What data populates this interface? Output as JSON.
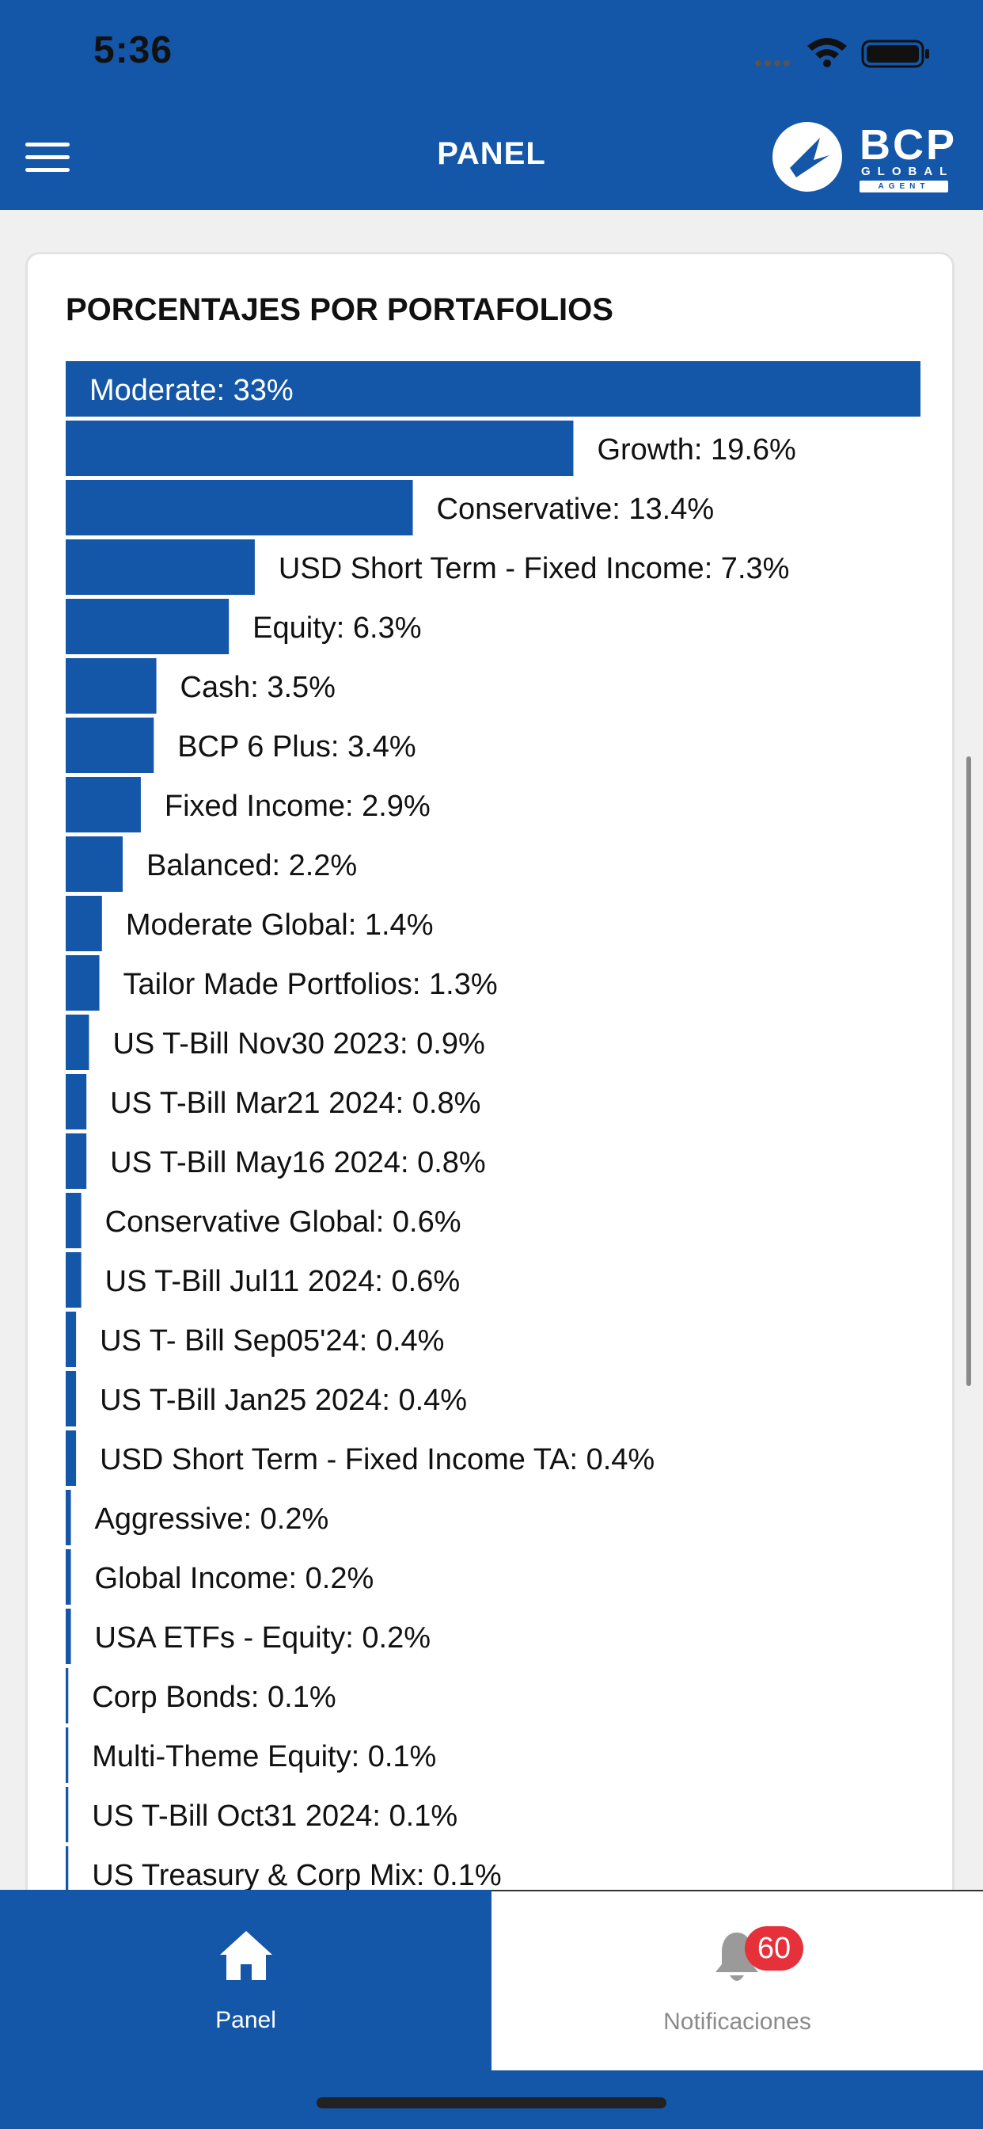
{
  "status_bar": {
    "time": "5:36"
  },
  "header": {
    "title": "PANEL",
    "logo_text": "BCP",
    "logo_sub": "GLOBAL",
    "logo_tag": "AGENT"
  },
  "card": {
    "title": "PORCENTAJES POR PORTAFOLIOS"
  },
  "colors": {
    "primary": "#1456a8",
    "badge": "#e6303a"
  },
  "chart_data": {
    "type": "bar",
    "orientation": "horizontal",
    "title": "PORCENTAJES POR PORTAFOLIOS",
    "unit": "%",
    "xlim": [
      0,
      33
    ],
    "categories": [
      "Moderate",
      "Growth",
      "Conservative",
      "USD Short Term - Fixed Income",
      "Equity",
      "Cash",
      "BCP 6 Plus",
      "Fixed Income",
      "Balanced",
      "Moderate Global",
      "Tailor Made Portfolios",
      "US T-Bill Nov30 2023",
      "US T-Bill Mar21 2024",
      "US T-Bill May16 2024",
      "Conservative Global",
      "US T-Bill Jul11 2024",
      "US T- Bill Sep05'24",
      "US T-Bill Jan25 2024",
      "USD Short Term - Fixed Income TA",
      "Aggressive",
      "Global Income",
      "USA ETFs - Equity",
      "Corp Bonds",
      "Multi-Theme Equity",
      "US T-Bill Oct31 2024",
      "US Treasury & Corp Mix"
    ],
    "values": [
      33,
      19.6,
      13.4,
      7.3,
      6.3,
      3.5,
      3.4,
      2.9,
      2.2,
      1.4,
      1.3,
      0.9,
      0.8,
      0.8,
      0.6,
      0.6,
      0.4,
      0.4,
      0.4,
      0.2,
      0.2,
      0.2,
      0.1,
      0.1,
      0.1,
      0.1
    ],
    "labels": [
      "Moderate: 33%",
      "Growth: 19.6%",
      "Conservative: 13.4%",
      "USD Short Term - Fixed Income: 7.3%",
      "Equity: 6.3%",
      "Cash: 3.5%",
      "BCP 6 Plus: 3.4%",
      "Fixed Income: 2.9%",
      "Balanced: 2.2%",
      "Moderate Global: 1.4%",
      "Tailor Made Portfolios: 1.3%",
      "US T-Bill Nov30 2023: 0.9%",
      "US T-Bill Mar21 2024: 0.8%",
      "US T-Bill May16 2024: 0.8%",
      "Conservative Global: 0.6%",
      "US T-Bill Jul11 2024: 0.6%",
      "US T- Bill Sep05'24: 0.4%",
      "US T-Bill Jan25 2024: 0.4%",
      "USD Short Term - Fixed Income TA: 0.4%",
      "Aggressive: 0.2%",
      "Global Income: 0.2%",
      "USA ETFs - Equity: 0.2%",
      "Corp Bonds: 0.1%",
      "Multi-Theme Equity: 0.1%",
      "US T-Bill Oct31 2024: 0.1%",
      "US Treasury & Corp Mix: 0.1%"
    ],
    "bar_color": "#1456a8",
    "grid": false,
    "legend": "none"
  },
  "tabbar": {
    "tabs": [
      {
        "label": "Panel",
        "icon": "home-icon",
        "active": true
      },
      {
        "label": "Notificaciones",
        "icon": "bell-icon",
        "active": false,
        "badge": "60"
      }
    ]
  }
}
